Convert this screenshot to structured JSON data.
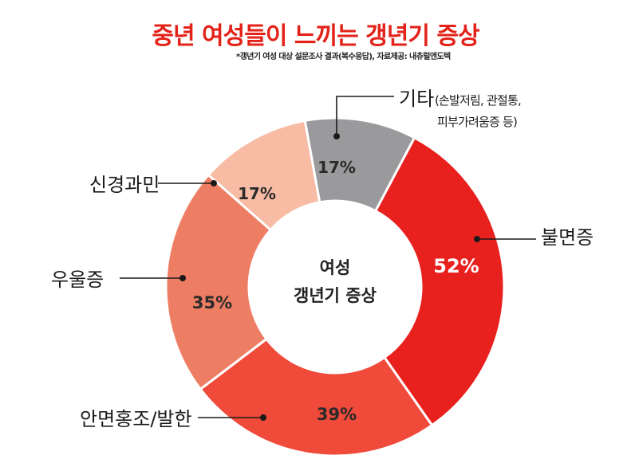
{
  "colors": {
    "title": "#e32219",
    "slices": [
      "#e8201e",
      "#f04a3a",
      "#ee7e63",
      "#f8bba4",
      "#9a9a9d"
    ]
  },
  "chart_data": {
    "type": "pie",
    "title": "중년 여성들이 느끼는 갱년기 증상",
    "subtitle": "*갱년기 여성 대상 설문조사 결과(복수응답), 자료제공: 내츄럴엔도텍",
    "center_label": [
      "여성",
      "갱년기 증상"
    ],
    "slices": [
      {
        "label": "불면증",
        "value": 52,
        "display": "52%"
      },
      {
        "label": "안면홍조/발한",
        "value": 39,
        "display": "39%"
      },
      {
        "label": "우울증",
        "value": 35,
        "display": "35%"
      },
      {
        "label": "신경과민",
        "value": 17,
        "display": "17%"
      },
      {
        "label": "기타",
        "label_note_1": "(손발저림, 관절통,",
        "label_note_2": "피부가려움증 등)",
        "value": 17,
        "display": "17%"
      }
    ]
  }
}
